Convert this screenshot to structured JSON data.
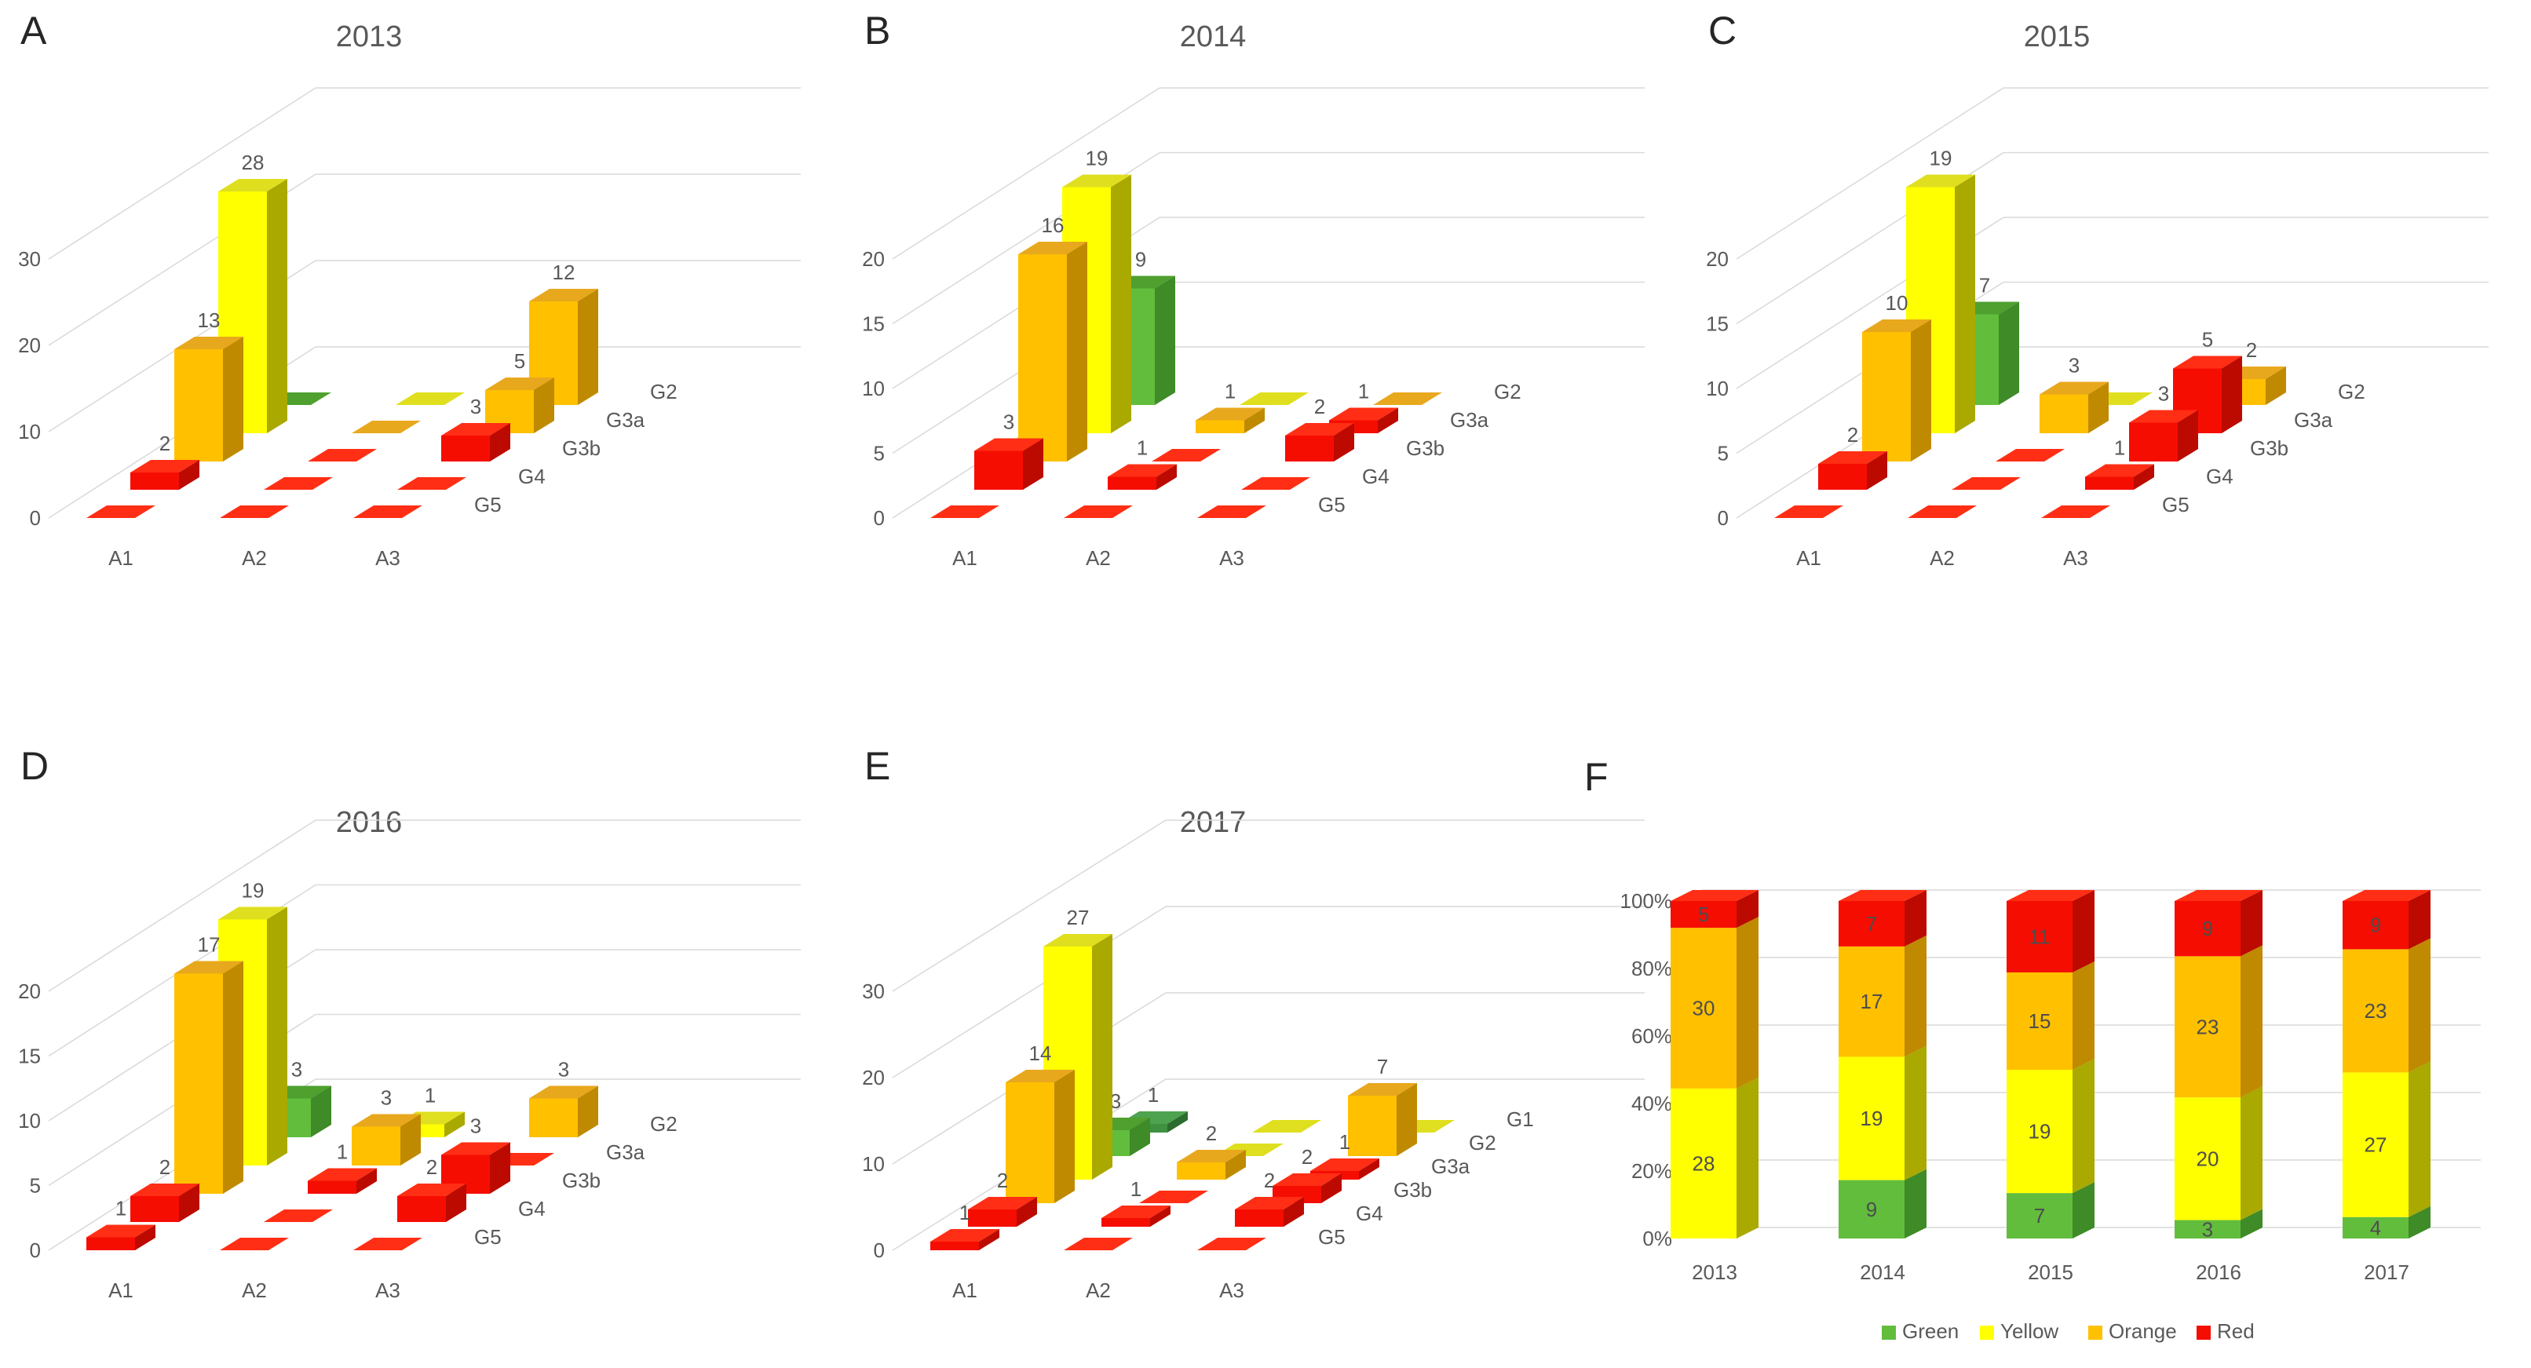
{
  "palette": {
    "red": {
      "front": "#f60d02",
      "top": "#ff2e14",
      "side": "#bc0a00"
    },
    "orange": {
      "front": "#ffc000",
      "top": "#e8a81e",
      "side": "#bf8a00"
    },
    "yellow": {
      "front": "#ffff00",
      "top": "#dfdf1f",
      "side": "#a9a900"
    },
    "green": {
      "front": "#62bd3d",
      "top": "#4fa02f",
      "side": "#3e8b27"
    },
    "darkgreen": {
      "front": "#3f9141",
      "top": "#4da34f",
      "side": "#2d6c2f"
    }
  },
  "style": {
    "grid_color": "#d9d9d9",
    "text_color": "#595959",
    "segment_label_color": "#4d4d4d"
  },
  "chart_data": [
    {
      "type": "bar3d",
      "panel_letter": "A",
      "title": "2013",
      "y_ticks": [
        0,
        10,
        20,
        30
      ],
      "y_max": 30,
      "x_categories": [
        "A1",
        "A2",
        "A3"
      ],
      "depth_categories_front_to_back": [
        "G5",
        "G4",
        "G3b",
        "G3a",
        "G2"
      ],
      "rows": [
        {
          "depth": "G5",
          "values": [
            0,
            0,
            0
          ],
          "colors": [
            "red",
            "red",
            "red"
          ]
        },
        {
          "depth": "G4",
          "values": [
            2,
            0,
            0
          ],
          "colors": [
            "red",
            "red",
            "red"
          ]
        },
        {
          "depth": "G3b",
          "values": [
            13,
            0,
            3
          ],
          "colors": [
            "orange",
            "red",
            "red"
          ]
        },
        {
          "depth": "G3a",
          "values": [
            28,
            0,
            5
          ],
          "colors": [
            "yellow",
            "orange",
            "orange"
          ]
        },
        {
          "depth": "G2",
          "values": [
            0,
            0,
            12
          ],
          "colors": [
            "green",
            "yellow",
            "orange"
          ]
        }
      ]
    },
    {
      "type": "bar3d",
      "panel_letter": "B",
      "title": "2014",
      "y_ticks": [
        0,
        5,
        10,
        15,
        20
      ],
      "y_max": 20,
      "x_categories": [
        "A1",
        "A2",
        "A3"
      ],
      "depth_categories_front_to_back": [
        "G5",
        "G4",
        "G3b",
        "G3a",
        "G2"
      ],
      "rows": [
        {
          "depth": "G5",
          "values": [
            0,
            0,
            0
          ],
          "colors": [
            "red",
            "red",
            "red"
          ]
        },
        {
          "depth": "G4",
          "values": [
            3,
            1,
            0
          ],
          "colors": [
            "red",
            "red",
            "red"
          ]
        },
        {
          "depth": "G3b",
          "values": [
            16,
            0,
            2
          ],
          "colors": [
            "orange",
            "red",
            "red"
          ]
        },
        {
          "depth": "G3a",
          "values": [
            19,
            1,
            1
          ],
          "colors": [
            "yellow",
            "orange",
            "red"
          ]
        },
        {
          "depth": "G2",
          "values": [
            9,
            0,
            0
          ],
          "colors": [
            "green",
            "yellow",
            "orange"
          ]
        }
      ]
    },
    {
      "type": "bar3d",
      "panel_letter": "C",
      "title": "2015",
      "y_ticks": [
        0,
        5,
        10,
        15,
        20
      ],
      "y_max": 20,
      "x_categories": [
        "A1",
        "A2",
        "A3"
      ],
      "depth_categories_front_to_back": [
        "G5",
        "G4",
        "G3b",
        "G3a",
        "G2"
      ],
      "rows": [
        {
          "depth": "G5",
          "values": [
            0,
            0,
            0
          ],
          "colors": [
            "red",
            "red",
            "red"
          ]
        },
        {
          "depth": "G4",
          "values": [
            2,
            0,
            1
          ],
          "colors": [
            "red",
            "red",
            "red"
          ]
        },
        {
          "depth": "G3b",
          "values": [
            10,
            0,
            3
          ],
          "colors": [
            "orange",
            "red",
            "red"
          ]
        },
        {
          "depth": "G3a",
          "values": [
            19,
            3,
            5
          ],
          "colors": [
            "yellow",
            "orange",
            "red"
          ]
        },
        {
          "depth": "G2",
          "values": [
            7,
            0,
            2
          ],
          "colors": [
            "green",
            "yellow",
            "orange"
          ]
        }
      ]
    },
    {
      "type": "bar3d",
      "panel_letter": "D",
      "title": "2016",
      "y_ticks": [
        0,
        5,
        10,
        15,
        20
      ],
      "y_max": 20,
      "x_categories": [
        "A1",
        "A2",
        "A3"
      ],
      "depth_categories_front_to_back": [
        "G5",
        "G4",
        "G3b",
        "G3a",
        "G2"
      ],
      "rows": [
        {
          "depth": "G5",
          "values": [
            1,
            0,
            0
          ],
          "colors": [
            "red",
            "red",
            "red"
          ]
        },
        {
          "depth": "G4",
          "values": [
            2,
            0,
            2
          ],
          "colors": [
            "red",
            "red",
            "red"
          ]
        },
        {
          "depth": "G3b",
          "values": [
            17,
            1,
            3
          ],
          "colors": [
            "orange",
            "red",
            "red"
          ]
        },
        {
          "depth": "G3a",
          "values": [
            19,
            3,
            0
          ],
          "colors": [
            "yellow",
            "orange",
            "red"
          ]
        },
        {
          "depth": "G2",
          "values": [
            3,
            1,
            3
          ],
          "colors": [
            "green",
            "yellow",
            "orange"
          ]
        }
      ]
    },
    {
      "type": "bar3d",
      "panel_letter": "E",
      "title": "2017",
      "y_ticks": [
        0,
        10,
        20,
        30
      ],
      "y_max": 30,
      "x_categories": [
        "A1",
        "A2",
        "A3"
      ],
      "depth_categories_front_to_back": [
        "G5",
        "G4",
        "G3b",
        "G3a",
        "G2",
        "G1"
      ],
      "rows": [
        {
          "depth": "G5",
          "values": [
            1,
            0,
            0
          ],
          "colors": [
            "red",
            "red",
            "red"
          ]
        },
        {
          "depth": "G4",
          "values": [
            2,
            1,
            2
          ],
          "colors": [
            "red",
            "red",
            "red"
          ]
        },
        {
          "depth": "G3b",
          "values": [
            14,
            0,
            2
          ],
          "colors": [
            "orange",
            "red",
            "red"
          ]
        },
        {
          "depth": "G3a",
          "values": [
            27,
            2,
            1
          ],
          "colors": [
            "yellow",
            "orange",
            "red"
          ]
        },
        {
          "depth": "G2",
          "values": [
            3,
            0,
            7
          ],
          "colors": [
            "green",
            "yellow",
            "orange"
          ]
        },
        {
          "depth": "G1",
          "values": [
            1,
            0,
            0
          ],
          "colors": [
            "darkgreen",
            "yellow",
            "yellow"
          ]
        }
      ]
    },
    {
      "type": "stacked_bar_100",
      "panel_letter": "F",
      "y_ticks": [
        "0%",
        "20%",
        "40%",
        "60%",
        "80%",
        "100%"
      ],
      "x_categories": [
        "2013",
        "2014",
        "2015",
        "2016",
        "2017"
      ],
      "series": [
        {
          "name": "Green",
          "color": "green",
          "values": [
            0,
            9,
            7,
            3,
            4
          ]
        },
        {
          "name": "Yellow",
          "color": "yellow",
          "values": [
            28,
            19,
            19,
            20,
            27
          ]
        },
        {
          "name": "Orange",
          "color": "orange",
          "values": [
            30,
            17,
            15,
            23,
            23
          ]
        },
        {
          "name": "Red",
          "color": "red",
          "values": [
            5,
            7,
            11,
            9,
            9
          ]
        }
      ],
      "legend": [
        "Green",
        "Yellow",
        "Orange",
        "Red"
      ],
      "legend_position": "bottom"
    }
  ]
}
